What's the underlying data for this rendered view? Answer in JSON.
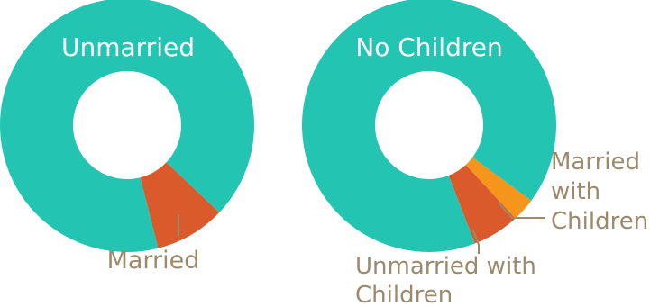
{
  "chart_data": [
    {
      "type": "pie",
      "title": "",
      "categories": [
        "Unmarried",
        "Married"
      ],
      "values": [
        91,
        9
      ],
      "colors": [
        "#23c4b1",
        "#db5a2c"
      ],
      "label_colors": [
        "#ffffff",
        "#9c8a6d"
      ]
    },
    {
      "type": "pie",
      "title": "",
      "categories": [
        "No Children",
        "Married with Children",
        "Unmarried with Children"
      ],
      "values": [
        91,
        3,
        6
      ],
      "colors": [
        "#23c4b1",
        "#f6951c",
        "#db5a2c"
      ],
      "label_colors": [
        "#ffffff",
        "#9c8a6d",
        "#9c8a6d"
      ]
    }
  ],
  "labels": {
    "left_unmarried": "Unmarried",
    "left_married": "Married",
    "right_no_children": "No Children",
    "right_married_with_children_l1": "Married",
    "right_married_with_children_l2": "with",
    "right_married_with_children_l3": "Children",
    "right_unmarried_with_children_l1": "Unmarried with",
    "right_unmarried_with_children_l2": "Children"
  }
}
